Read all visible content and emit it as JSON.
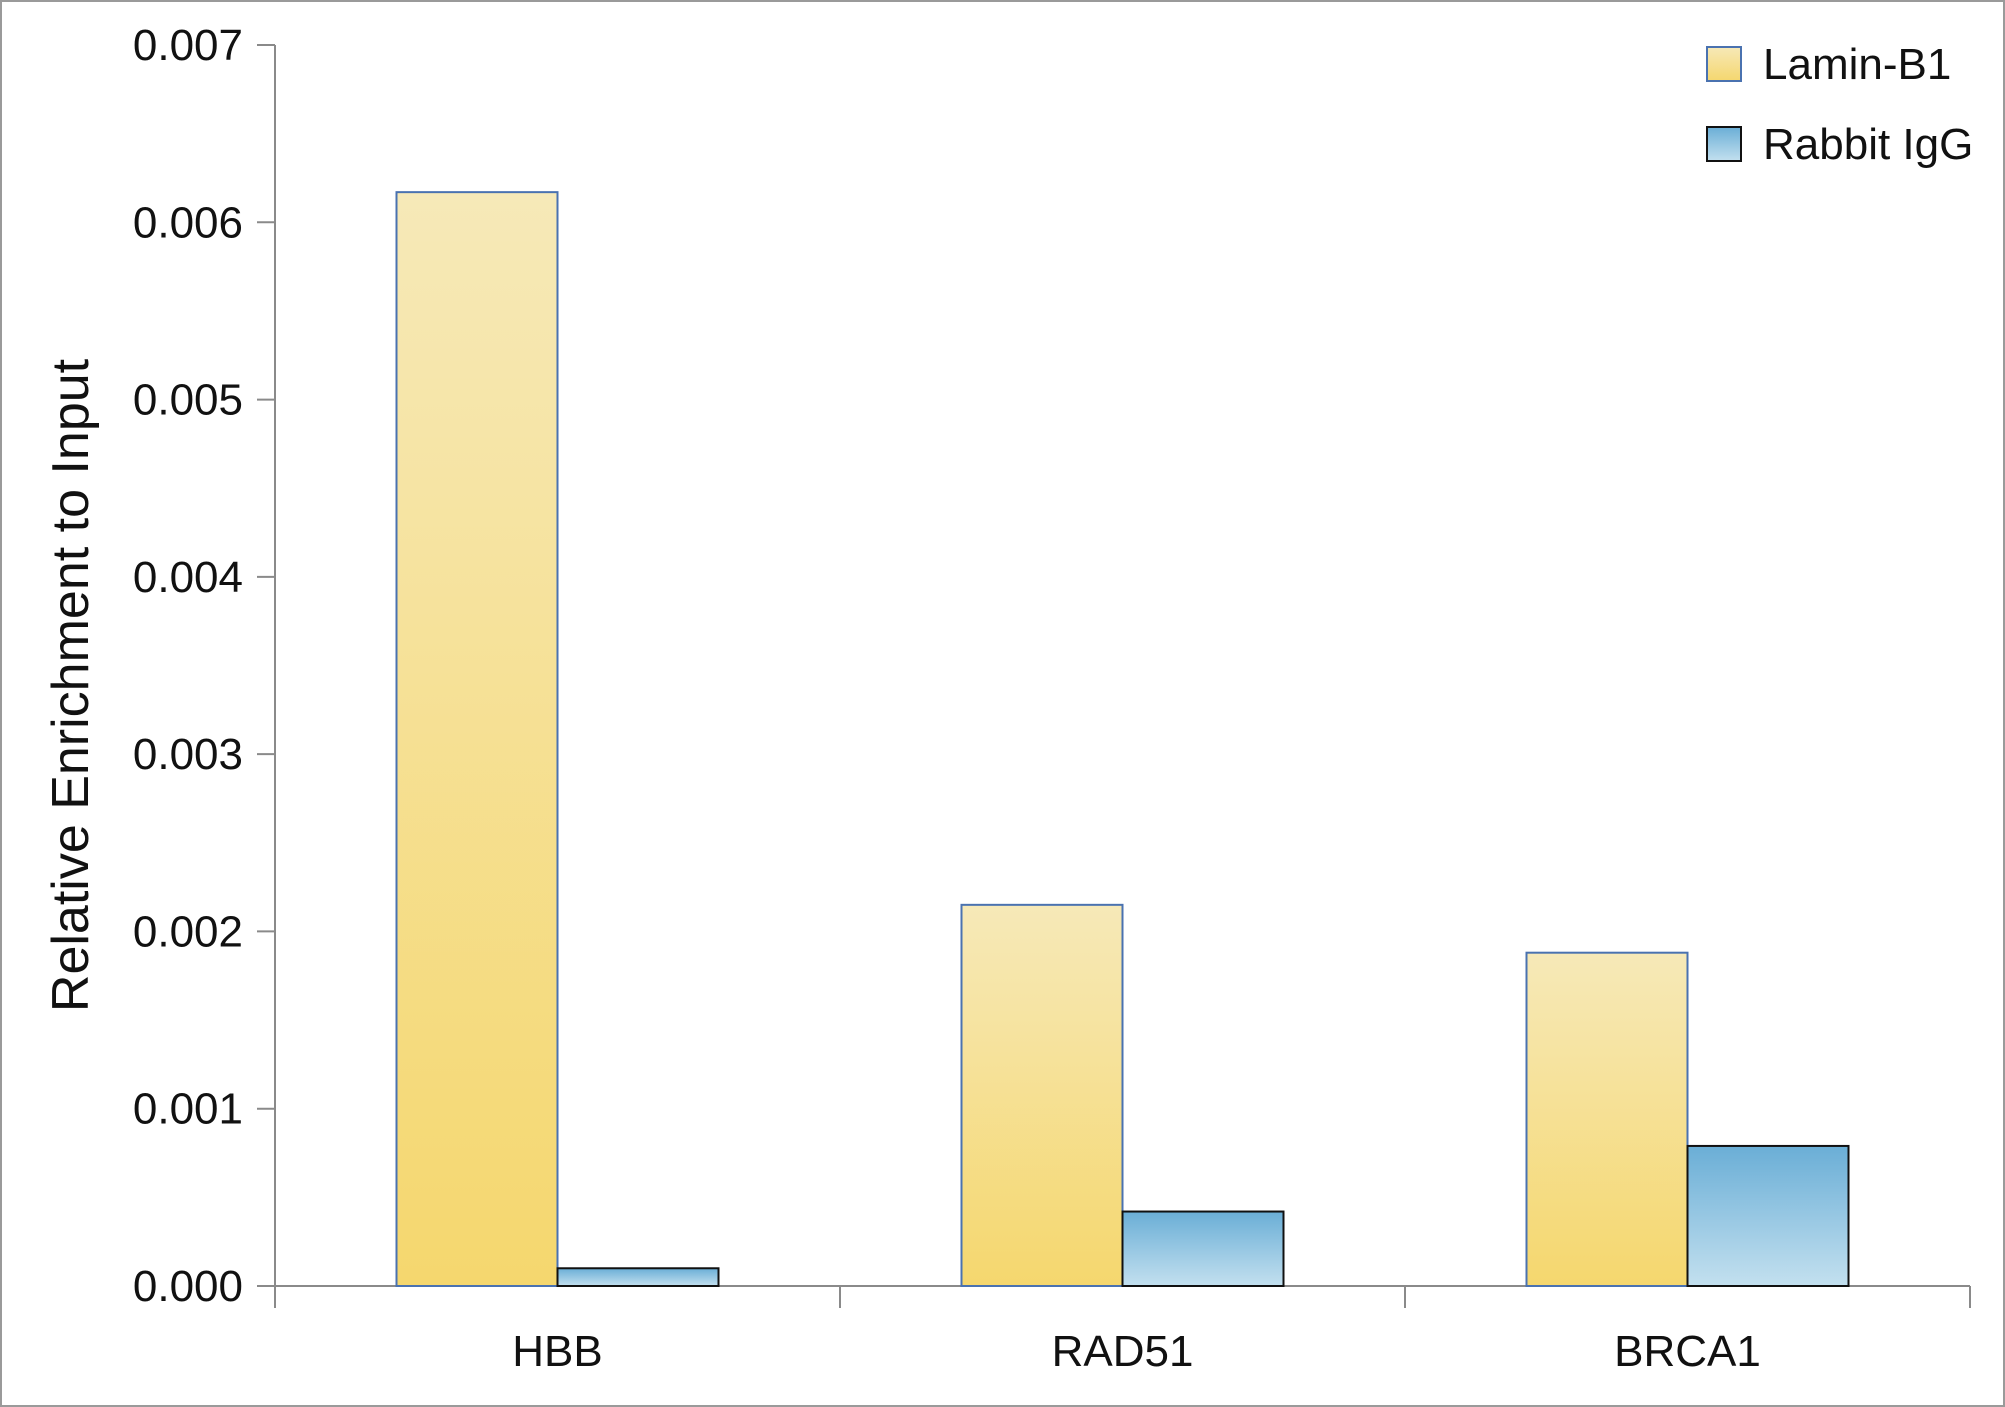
{
  "chart_data": {
    "type": "bar",
    "title": "",
    "xlabel": "",
    "ylabel": "Relative Enrichment to Input",
    "categories": [
      "HBB",
      "RAD51",
      "BRCA1"
    ],
    "series": [
      {
        "name": "Lamin-B1",
        "values": [
          0.00617,
          0.00215,
          0.00188
        ],
        "color_top": "#f6e9b8",
        "color_bottom": "#f5d76e",
        "stroke": "#4a72b0"
      },
      {
        "name": "Rabbit IgG",
        "values": [
          0.0001,
          0.00042,
          0.00079
        ],
        "color_top": "#6aaed6",
        "color_bottom": "#c3e0ef",
        "stroke": "#111111"
      }
    ],
    "ylim": [
      0,
      0.007
    ],
    "yticks": [
      "0.000",
      "0.001",
      "0.002",
      "0.003",
      "0.004",
      "0.005",
      "0.006",
      "0.007"
    ],
    "grid": false,
    "legend_position": "top-right"
  }
}
